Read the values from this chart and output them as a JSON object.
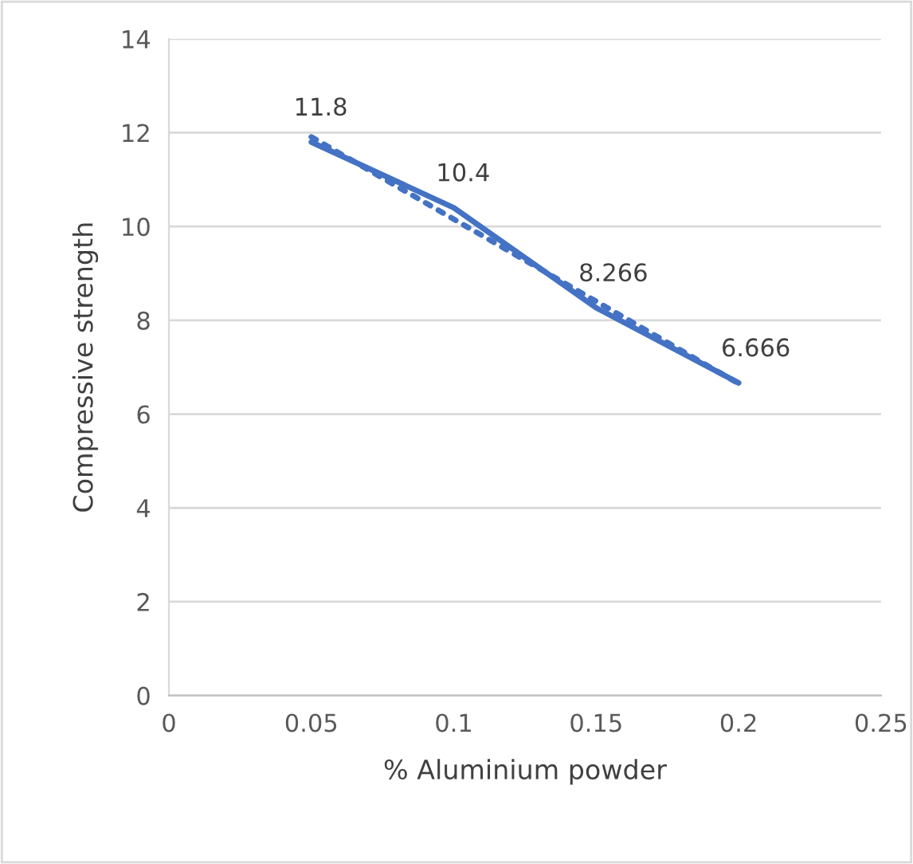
{
  "chart_data": {
    "type": "line",
    "xlabel": "% Aluminium powder",
    "ylabel": "Compressive strength",
    "x": [
      0.05,
      0.1,
      0.15,
      0.2
    ],
    "series": [
      {
        "color": "#4472c4",
        "values": [
          11.8,
          10.4,
          8.266,
          6.666
        ],
        "line_style": "solid",
        "data_labels": true
      },
      {
        "type": "line",
        "color": "#4472c4",
        "x": [
          0.05,
          0.2
        ],
        "values": [
          11.91,
          6.65
        ],
        "line_style": "dotted"
      }
    ],
    "xlim": [
      0,
      0.25
    ],
    "xticks": [
      0,
      0.05,
      0.1,
      0.15,
      0.2,
      0.25
    ],
    "ylim": [
      0,
      14
    ],
    "yticks": [
      0,
      2,
      4,
      6,
      8,
      10,
      12,
      14
    ],
    "grid": "y",
    "marker": "none"
  }
}
